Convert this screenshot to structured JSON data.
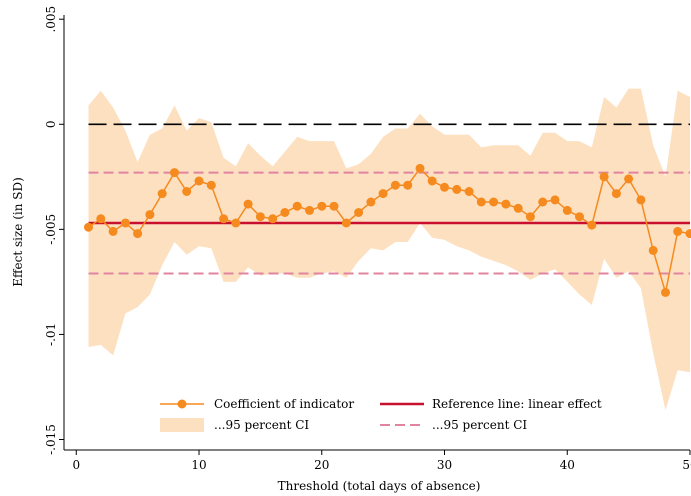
{
  "chart_data": {
    "type": "line",
    "xlabel": "Threshold (total days of absence)",
    "ylabel": "Effect size (in SD)",
    "xlim": [
      -1,
      50
    ],
    "ylim": [
      -0.0155,
      0.0052
    ],
    "x_ticks": [
      0,
      10,
      20,
      30,
      40,
      50
    ],
    "x_tick_labels": [
      "0",
      "10",
      "20",
      "30",
      "40",
      "50"
    ],
    "y_ticks": [
      0.005,
      0,
      -0.005,
      -0.01,
      -0.015
    ],
    "y_tick_labels": [
      ".005",
      "0",
      "-.005",
      "-.01",
      "-.015"
    ],
    "grid": false,
    "legend_placement": "bottom",
    "colors": {
      "coefficient": "#f58a1f",
      "ci_band": "#fde0c0",
      "reference": "#c8102e",
      "reference_ci": "#e0849f",
      "zero_line": "#000000"
    },
    "x": [
      1,
      2,
      3,
      4,
      5,
      6,
      7,
      8,
      9,
      10,
      11,
      12,
      13,
      14,
      15,
      16,
      17,
      18,
      19,
      20,
      21,
      22,
      23,
      24,
      25,
      26,
      27,
      28,
      29,
      30,
      31,
      32,
      33,
      34,
      35,
      36,
      37,
      38,
      39,
      40,
      41,
      42,
      43,
      44,
      45,
      46,
      47,
      48,
      49,
      50
    ],
    "series": [
      {
        "name": "Coefficient of indicator",
        "values": [
          -0.0049,
          -0.0045,
          -0.0051,
          -0.0047,
          -0.0052,
          -0.0043,
          -0.0033,
          -0.0023,
          -0.0032,
          -0.0027,
          -0.0029,
          -0.0045,
          -0.0047,
          -0.0038,
          -0.0044,
          -0.0045,
          -0.0042,
          -0.0039,
          -0.0041,
          -0.0039,
          -0.0039,
          -0.0047,
          -0.0042,
          -0.0037,
          -0.0033,
          -0.0029,
          -0.0029,
          -0.0021,
          -0.0027,
          -0.003,
          -0.0031,
          -0.0032,
          -0.0037,
          -0.0037,
          -0.0038,
          -0.004,
          -0.0044,
          -0.0037,
          -0.0036,
          -0.0041,
          -0.0044,
          -0.0048,
          -0.0025,
          -0.0033,
          -0.0026,
          -0.0036,
          -0.006,
          -0.008,
          -0.0051,
          -0.0052
        ]
      },
      {
        "name": "...95 percent CI",
        "lower": [
          -0.0106,
          -0.0105,
          -0.011,
          -0.009,
          -0.0087,
          -0.0081,
          -0.0067,
          -0.0056,
          -0.0062,
          -0.0058,
          -0.0059,
          -0.0075,
          -0.0075,
          -0.0068,
          -0.0072,
          -0.0071,
          -0.0071,
          -0.0073,
          -0.0073,
          -0.0071,
          -0.007,
          -0.0073,
          -0.0065,
          -0.0059,
          -0.006,
          -0.0056,
          -0.0056,
          -0.0047,
          -0.0054,
          -0.0055,
          -0.0058,
          -0.006,
          -0.0063,
          -0.0065,
          -0.0067,
          -0.007,
          -0.0074,
          -0.0071,
          -0.0069,
          -0.0075,
          -0.0081,
          -0.0086,
          -0.0064,
          -0.0073,
          -0.007,
          -0.0078,
          -0.0109,
          -0.0136,
          -0.0117,
          -0.0118
        ],
        "upper": [
          0.0009,
          0.0016,
          0.0008,
          -0.0003,
          -0.0018,
          -0.0005,
          -0.0002,
          0.0009,
          -0.0003,
          0.0003,
          0.0001,
          -0.0016,
          -0.002,
          -0.0009,
          -0.0015,
          -0.002,
          -0.0013,
          -0.0006,
          -0.0008,
          -0.0008,
          -0.0008,
          -0.0021,
          -0.0019,
          -0.0014,
          -0.0006,
          -0.0002,
          -0.0002,
          0.0005,
          -0.0001,
          -0.0005,
          -0.0005,
          -0.0005,
          -0.0011,
          -0.001,
          -0.001,
          -0.001,
          -0.0015,
          -0.0004,
          -0.0004,
          -0.0008,
          -0.0008,
          -0.0011,
          0.0013,
          0.0008,
          0.0017,
          0.0017,
          -0.001,
          -0.0025,
          0.0016,
          0.0013
        ]
      },
      {
        "name": "Reference line: linear effect",
        "value": -0.0047
      },
      {
        "name": "...95 percent CI",
        "lower": -0.0071,
        "upper": -0.0023
      }
    ],
    "zero_line": 0
  }
}
